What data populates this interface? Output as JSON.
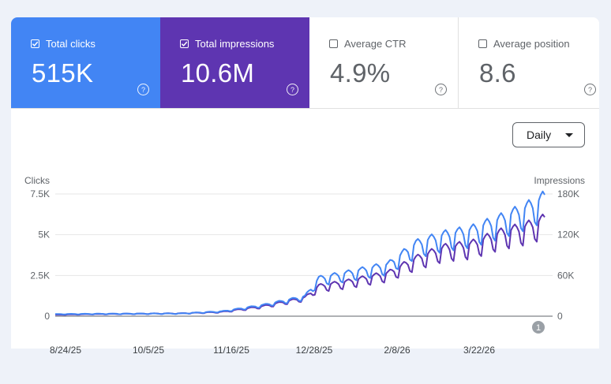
{
  "metrics": [
    {
      "label": "Total clicks",
      "value": "515K",
      "checked": true,
      "color": "#4285f4"
    },
    {
      "label": "Total impressions",
      "value": "10.6M",
      "checked": true,
      "color": "#5e35b1"
    },
    {
      "label": "Average CTR",
      "value": "4.9%",
      "checked": false
    },
    {
      "label": "Average position",
      "value": "8.6",
      "checked": false
    }
  ],
  "help_glyph": "?",
  "granularity": {
    "selected": "Daily"
  },
  "annotation_badge": "1",
  "chart_data": {
    "type": "line",
    "left_axis": {
      "label": "Clicks",
      "ticks": [
        "0",
        "2.5K",
        "5K",
        "7.5K"
      ],
      "range": [
        0,
        7500
      ]
    },
    "right_axis": {
      "label": "Impressions",
      "ticks": [
        "0",
        "60K",
        "120K",
        "180K"
      ],
      "range": [
        0,
        180000
      ]
    },
    "x_labels": [
      "8/24/25",
      "10/5/25",
      "11/16/25",
      "12/28/25",
      "2/8/26",
      "3/22/26"
    ],
    "x_range": [
      "2025-08-24",
      "2026-04-28"
    ],
    "grid": true,
    "series": [
      {
        "key": "impressions",
        "color": "#5e35b1",
        "axis": "right",
        "points": [
          [
            "2025-08-24",
            2000
          ],
          [
            "2025-09-14",
            3000
          ],
          [
            "2025-10-05",
            3500
          ],
          [
            "2025-10-26",
            4000
          ],
          [
            "2025-11-16",
            6000
          ],
          [
            "2025-12-07",
            14000
          ],
          [
            "2025-12-28",
            26000
          ],
          [
            "2026-01-04",
            42000
          ],
          [
            "2026-01-18",
            48000
          ],
          [
            "2026-02-08",
            60000
          ],
          [
            "2026-02-22",
            80000
          ],
          [
            "2026-03-08",
            95000
          ],
          [
            "2026-03-22",
            100000
          ],
          [
            "2026-04-05",
            115000
          ],
          [
            "2026-04-19",
            125000
          ],
          [
            "2026-04-28",
            135000
          ]
        ]
      },
      {
        "key": "clicks",
        "color": "#4285f4",
        "axis": "left",
        "points": [
          [
            "2025-08-24",
            120
          ],
          [
            "2025-09-14",
            140
          ],
          [
            "2025-10-05",
            150
          ],
          [
            "2025-10-26",
            160
          ],
          [
            "2025-11-16",
            280
          ],
          [
            "2025-12-07",
            650
          ],
          [
            "2025-12-28",
            1150
          ],
          [
            "2026-01-04",
            2200
          ],
          [
            "2026-01-18",
            2500
          ],
          [
            "2026-02-08",
            3000
          ],
          [
            "2026-02-22",
            4200
          ],
          [
            "2026-03-08",
            4700
          ],
          [
            "2026-03-22",
            5000
          ],
          [
            "2026-04-05",
            5600
          ],
          [
            "2026-04-19",
            6300
          ],
          [
            "2026-04-28",
            6900
          ]
        ]
      }
    ]
  }
}
